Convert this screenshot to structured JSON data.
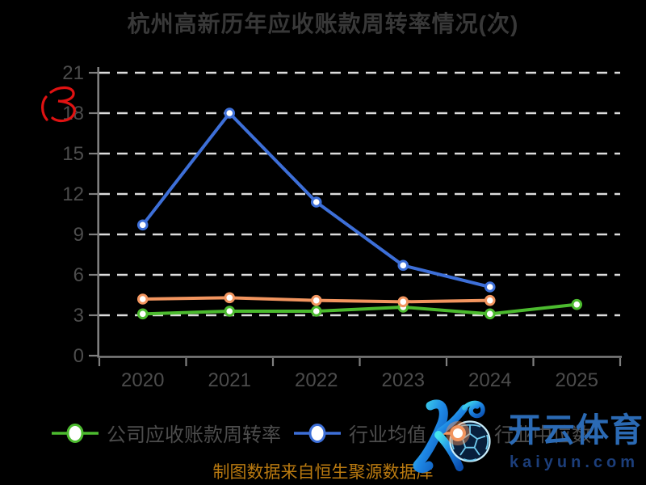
{
  "chart_data": {
    "type": "line",
    "title": "杭州高新历年应收账款周转率情况(次)",
    "categories": [
      "2020",
      "2021",
      "2022",
      "2023",
      "2024",
      "2025"
    ],
    "series": [
      {
        "name": "公司应收账款周转率",
        "key": "company-receivables-turnover",
        "color": "#4CBB2F",
        "values": [
          3.1,
          3.3,
          3.3,
          3.6,
          3.1,
          3.8
        ]
      },
      {
        "name": "行业均值",
        "key": "industry-mean",
        "color": "#3D6FD8",
        "values": [
          9.7,
          18.0,
          11.4,
          6.7,
          5.1,
          null
        ]
      },
      {
        "name": "行业中位数",
        "key": "industry-median",
        "color": "#F2955F",
        "values": [
          4.2,
          4.3,
          4.1,
          4.0,
          4.1,
          null
        ]
      }
    ],
    "xlabel": "",
    "ylabel": "",
    "ylim": [
      0,
      21
    ],
    "yticks": [
      0,
      3,
      6,
      9,
      12,
      15,
      18,
      21
    ],
    "grid": "horizontal dashed white lines",
    "legend_position": "bottom",
    "background": "black",
    "marker_fill": "#FFFFFF"
  },
  "caption": {
    "text": "制图数据来自恒生聚源数据库"
  },
  "watermark": {
    "brand": "开云体育",
    "domain": "kaiyun.com",
    "monogram": "K"
  },
  "annotations": {
    "red_scribble": "handwritten red mark left of y-axis near value 18"
  },
  "colors": {
    "background": "#000000",
    "title": "#383838",
    "tick_label": "#4C4C4C",
    "legend_label": "#4C4C4C",
    "axis": "#7F7F7F",
    "gridline": "#DCDCDC",
    "caption": "#BA7A10",
    "watermark_brand": "#2B6AB4",
    "watermark_domain": "#1C3E7A",
    "scribble_red": "#E01212"
  }
}
